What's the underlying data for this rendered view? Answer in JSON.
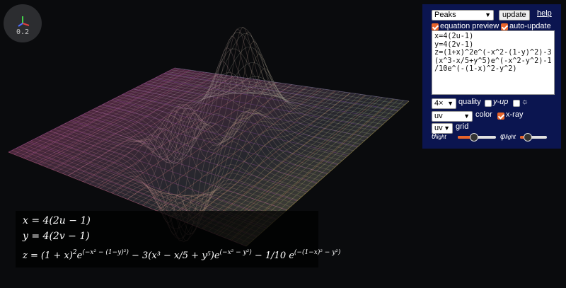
{
  "axis_widget": {
    "zoom": "0.2"
  },
  "controls": {
    "preset": "Peaks",
    "update_label": "update",
    "help_label": "help",
    "equation_preview_label": "equation preview",
    "equation_preview_checked": true,
    "auto_update_label": "auto-update",
    "auto_update_checked": true,
    "equation_text": "x=4(2u-1)\ny=4(2v-1)\nz=(1+x)^2e^(-x^2-(1-y)^2)-3\n(x^3-x/5+y^5)e^(-x^2-y^2)-1\n/10e^(-(1-x)^2-y^2)",
    "quality": "4×",
    "quality_label": "quality",
    "yup_label": "y-up",
    "yup_checked": false,
    "sun_label": "☼",
    "sun_checked": false,
    "color_mode": "uv",
    "color_label": "color",
    "xray_label": "x-ray",
    "xray_checked": true,
    "grid_mode": "uv",
    "grid_label": "grid",
    "theta_label": "θ",
    "theta_sub": "light",
    "theta_value": 0.4,
    "phi_label": "φ",
    "phi_sub": "light",
    "phi_value": 0.2
  },
  "preview": {
    "line1": "x = 4(2u − 1)",
    "line2": "y = 4(2v − 1)",
    "line3_a": "z = (1 + x)",
    "line3_b": "2",
    "line3_c": "e",
    "line3_d": "(−x² − (1−y)²)",
    "line3_e": " − 3(x³ − x/5 + y⁵)e",
    "line3_f": "(−x² − y²)",
    "line3_g": " − 1/10 e",
    "line3_h": "(−(1−x)² − y²)"
  },
  "colors": {
    "accent": "#e8642a",
    "panel_bg": "#0b1550",
    "background": "#0a0b0d"
  }
}
